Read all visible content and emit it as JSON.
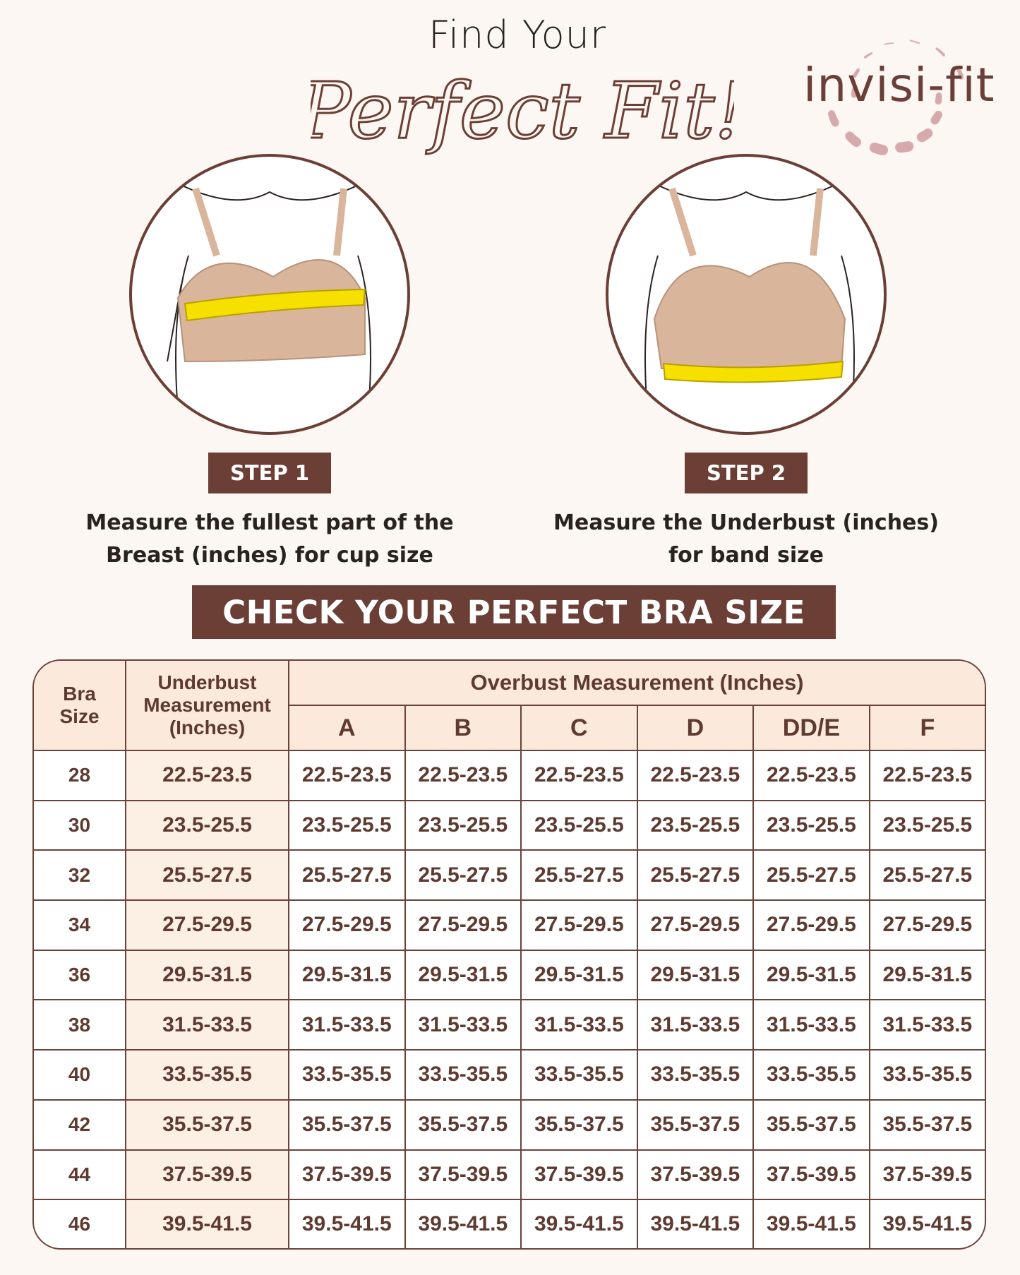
{
  "header": {
    "line1": "Find Your",
    "script_title": "Perfect Fit!",
    "brand": "invisi-fit"
  },
  "steps": [
    {
      "label": "STEP 1",
      "line1": "Measure the fullest part of the",
      "line2": "Breast (inches) for cup size"
    },
    {
      "label": "STEP 2",
      "line1": "Measure the Underbust (inches)",
      "line2": "for band size"
    }
  ],
  "banner": "CHECK YOUR PERFECT BRA SIZE",
  "colors": {
    "brown": "#6b3f35",
    "header_bg": "#fbeadb",
    "background": "#fcf7f2",
    "tape": "#f5e000",
    "skin": "#d9b59c"
  },
  "table": {
    "headers": {
      "bra_size": [
        "Bra",
        "Size"
      ],
      "underbust": [
        "Underbust",
        "Measurement",
        "(Inches)"
      ],
      "overbust": "Overbust Measurement (Inches)",
      "cups": [
        "A",
        "B",
        "C",
        "D",
        "DD/E",
        "F"
      ]
    },
    "rows": [
      {
        "size": "28",
        "underbust": "22.5-23.5",
        "cups": [
          "22.5-23.5",
          "22.5-23.5",
          "22.5-23.5",
          "22.5-23.5",
          "22.5-23.5",
          "22.5-23.5"
        ]
      },
      {
        "size": "30",
        "underbust": "23.5-25.5",
        "cups": [
          "23.5-25.5",
          "23.5-25.5",
          "23.5-25.5",
          "23.5-25.5",
          "23.5-25.5",
          "23.5-25.5"
        ]
      },
      {
        "size": "32",
        "underbust": "25.5-27.5",
        "cups": [
          "25.5-27.5",
          "25.5-27.5",
          "25.5-27.5",
          "25.5-27.5",
          "25.5-27.5",
          "25.5-27.5"
        ]
      },
      {
        "size": "34",
        "underbust": "27.5-29.5",
        "cups": [
          "27.5-29.5",
          "27.5-29.5",
          "27.5-29.5",
          "27.5-29.5",
          "27.5-29.5",
          "27.5-29.5"
        ]
      },
      {
        "size": "36",
        "underbust": "29.5-31.5",
        "cups": [
          "29.5-31.5",
          "29.5-31.5",
          "29.5-31.5",
          "29.5-31.5",
          "29.5-31.5",
          "29.5-31.5"
        ]
      },
      {
        "size": "38",
        "underbust": "31.5-33.5",
        "cups": [
          "31.5-33.5",
          "31.5-33.5",
          "31.5-33.5",
          "31.5-33.5",
          "31.5-33.5",
          "31.5-33.5"
        ]
      },
      {
        "size": "40",
        "underbust": "33.5-35.5",
        "cups": [
          "33.5-35.5",
          "33.5-35.5",
          "33.5-35.5",
          "33.5-35.5",
          "33.5-35.5",
          "33.5-35.5"
        ]
      },
      {
        "size": "42",
        "underbust": "35.5-37.5",
        "cups": [
          "35.5-37.5",
          "35.5-37.5",
          "35.5-37.5",
          "35.5-37.5",
          "35.5-37.5",
          "35.5-37.5"
        ]
      },
      {
        "size": "44",
        "underbust": "37.5-39.5",
        "cups": [
          "37.5-39.5",
          "37.5-39.5",
          "37.5-39.5",
          "37.5-39.5",
          "37.5-39.5",
          "37.5-39.5"
        ]
      },
      {
        "size": "46",
        "underbust": "39.5-41.5",
        "cups": [
          "39.5-41.5",
          "39.5-41.5",
          "39.5-41.5",
          "39.5-41.5",
          "39.5-41.5",
          "39.5-41.5"
        ]
      }
    ]
  }
}
